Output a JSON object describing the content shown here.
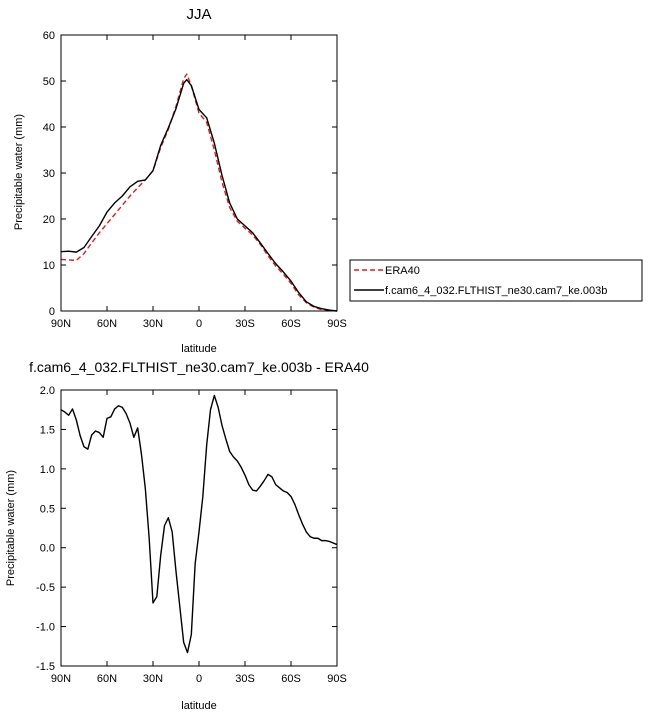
{
  "chart_data": [
    {
      "type": "line",
      "title": "JJA",
      "xlabel": "latitude",
      "ylabel": "Precipitable water (mm)",
      "xlim": [
        -90,
        90
      ],
      "ylim": [
        0,
        60
      ],
      "xticks": [
        -90,
        -60,
        -30,
        0,
        30,
        60,
        90
      ],
      "xtick_labels": [
        "90N",
        "60N",
        "30N",
        "0",
        "30S",
        "60S",
        "90S"
      ],
      "yticks": [
        0,
        10,
        20,
        30,
        40,
        50,
        60
      ],
      "ytick_labels": [
        "0",
        "10",
        "20",
        "30",
        "40",
        "50",
        "60"
      ],
      "grid": false,
      "legend_position": "right",
      "series": [
        {
          "name": "ERA40",
          "color": "#e41a1c",
          "dash": "dashed",
          "x": [
            -90,
            -85,
            -80,
            -75,
            -70,
            -65,
            -60,
            -55,
            -50,
            -45,
            -40,
            -35,
            -30,
            -25,
            -20,
            -15,
            -10,
            -8,
            -5,
            0,
            5,
            10,
            15,
            20,
            25,
            30,
            35,
            40,
            45,
            50,
            55,
            60,
            65,
            70,
            75,
            80,
            85,
            90
          ],
          "y": [
            11.2,
            11.1,
            11.0,
            12.5,
            14.8,
            17.0,
            19.0,
            21.0,
            23.0,
            25.0,
            26.8,
            28.5,
            30.5,
            35.5,
            39.5,
            44.5,
            50.5,
            51.5,
            49.0,
            43.0,
            41.0,
            35.0,
            28.0,
            22.5,
            19.5,
            18.0,
            16.5,
            14.5,
            12.0,
            9.8,
            8.0,
            6.0,
            3.5,
            1.8,
            0.8,
            0.3,
            0.1,
            0.0
          ]
        },
        {
          "name": "f.cam6_4_032.FLTHIST_ne30.cam7_ke.003b",
          "color": "#000000",
          "dash": "solid",
          "x": [
            -90,
            -85,
            -80,
            -75,
            -70,
            -65,
            -60,
            -55,
            -50,
            -45,
            -40,
            -35,
            -30,
            -25,
            -20,
            -15,
            -10,
            -8,
            -5,
            0,
            5,
            10,
            15,
            20,
            25,
            30,
            35,
            40,
            45,
            50,
            55,
            60,
            65,
            70,
            75,
            80,
            85,
            90
          ],
          "y": [
            12.9,
            13.0,
            12.8,
            13.8,
            16.2,
            18.5,
            21.5,
            23.5,
            25.0,
            27.0,
            28.2,
            28.5,
            30.5,
            36.0,
            39.8,
            44.0,
            49.5,
            50.3,
            49.0,
            43.8,
            42.0,
            36.5,
            29.5,
            23.5,
            20.0,
            18.5,
            17.0,
            14.8,
            12.5,
            10.3,
            8.5,
            6.5,
            4.0,
            2.0,
            1.0,
            0.5,
            0.2,
            0.0
          ]
        }
      ]
    },
    {
      "type": "line",
      "title": "f.cam6_4_032.FLTHIST_ne30.cam7_ke.003b - ERA40",
      "xlabel": "latitude",
      "ylabel": "Precipitable water (mm)",
      "xlim": [
        -90,
        90
      ],
      "ylim": [
        -1.5,
        2.0
      ],
      "xticks": [
        -90,
        -60,
        -30,
        0,
        30,
        60,
        90
      ],
      "xtick_labels": [
        "90N",
        "60N",
        "30N",
        "0",
        "30S",
        "60S",
        "90S"
      ],
      "yticks": [
        -1.5,
        -1.0,
        -0.5,
        0.0,
        0.5,
        1.0,
        1.5,
        2.0
      ],
      "ytick_labels": [
        "-1.5",
        "-1.0",
        "-0.5",
        "0.0",
        "0.5",
        "1.0",
        "1.5",
        "2.0"
      ],
      "grid": false,
      "series": [
        {
          "color": "#000000",
          "dash": "solid",
          "x": [
            -90,
            -87.5,
            -85,
            -82.5,
            -80,
            -77.5,
            -75,
            -72.5,
            -70,
            -67.5,
            -65,
            -62.5,
            -60,
            -57.5,
            -55,
            -52.5,
            -50,
            -47.5,
            -45,
            -42.5,
            -40,
            -37.5,
            -35,
            -32.5,
            -30,
            -27.5,
            -25,
            -22.5,
            -20,
            -17.5,
            -15,
            -12.5,
            -10,
            -7.5,
            -5,
            -2.5,
            0,
            2.5,
            5,
            7.5,
            10,
            12.5,
            15,
            17.5,
            20,
            22.5,
            25,
            27.5,
            30,
            32.5,
            35,
            37.5,
            40,
            42.5,
            45,
            47.5,
            50,
            52.5,
            55,
            57.5,
            60,
            62.5,
            65,
            67.5,
            70,
            72.5,
            75,
            77.5,
            80,
            82.5,
            85,
            87.5,
            90
          ],
          "y": [
            1.75,
            1.72,
            1.68,
            1.76,
            1.62,
            1.42,
            1.28,
            1.25,
            1.43,
            1.48,
            1.46,
            1.4,
            1.64,
            1.66,
            1.76,
            1.8,
            1.78,
            1.7,
            1.58,
            1.4,
            1.52,
            1.18,
            0.75,
            0.12,
            -0.7,
            -0.62,
            -0.1,
            0.28,
            0.38,
            0.2,
            -0.3,
            -0.75,
            -1.2,
            -1.33,
            -1.1,
            -0.2,
            0.2,
            0.65,
            1.3,
            1.75,
            1.93,
            1.78,
            1.55,
            1.38,
            1.22,
            1.15,
            1.1,
            1.02,
            0.92,
            0.8,
            0.73,
            0.72,
            0.78,
            0.85,
            0.93,
            0.9,
            0.8,
            0.76,
            0.72,
            0.7,
            0.65,
            0.55,
            0.42,
            0.3,
            0.2,
            0.14,
            0.12,
            0.12,
            0.09,
            0.09,
            0.08,
            0.06,
            0.04
          ]
        }
      ]
    }
  ]
}
